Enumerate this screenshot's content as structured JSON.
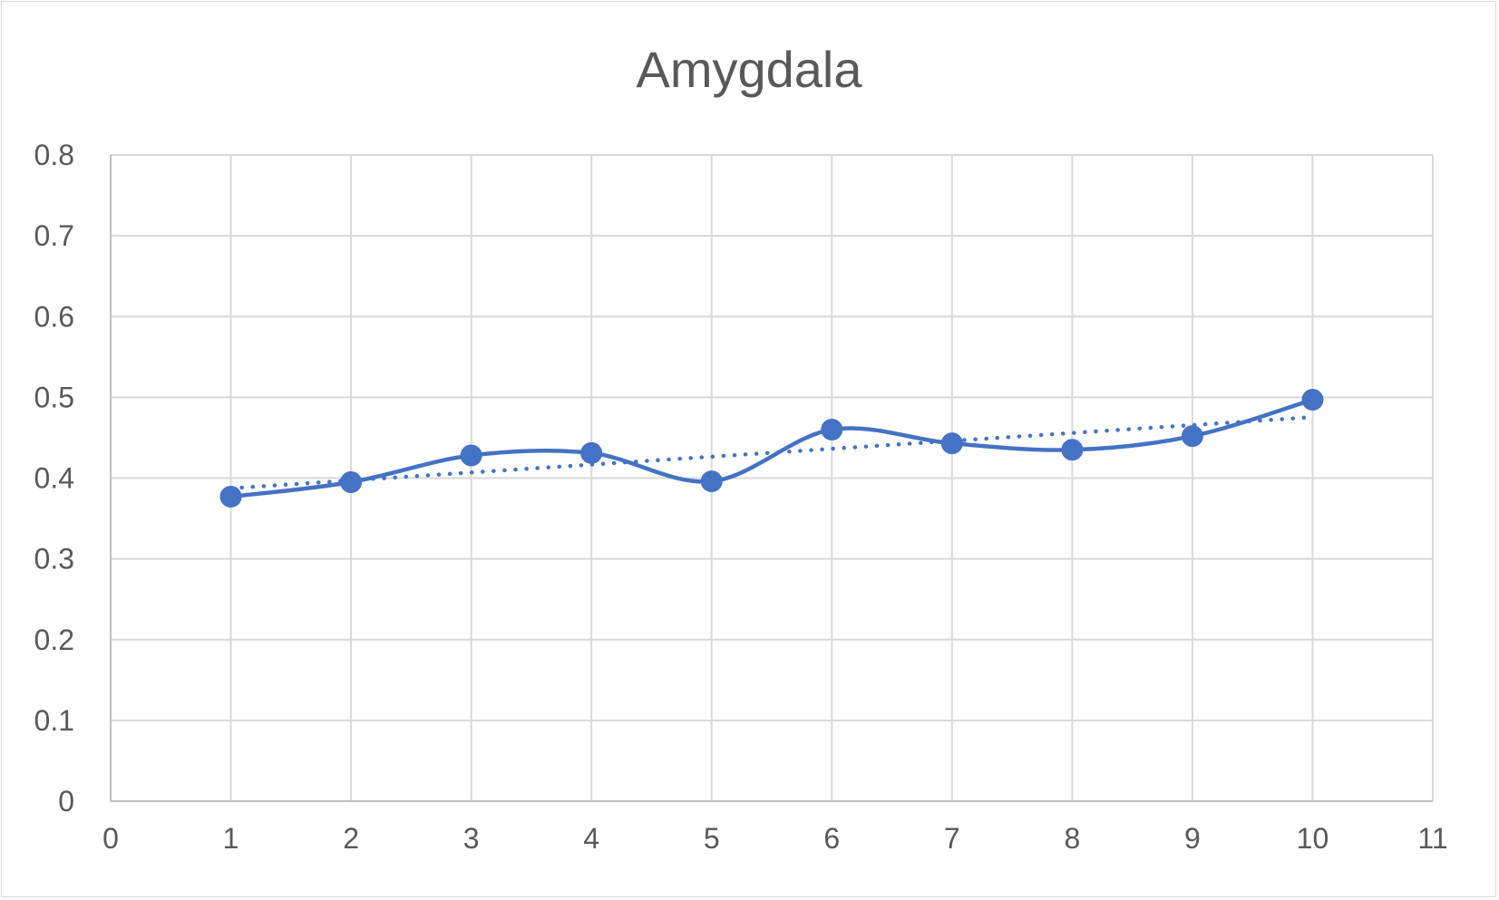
{
  "chart_data": {
    "type": "scatter",
    "title": "Amygdala",
    "xlabel": "",
    "ylabel": "",
    "xlim": [
      0,
      11
    ],
    "ylim": [
      0,
      0.8
    ],
    "x_ticks": [
      "0",
      "1",
      "2",
      "3",
      "4",
      "5",
      "6",
      "7",
      "8",
      "9",
      "10",
      "11"
    ],
    "y_ticks": [
      "0",
      "0.1",
      "0.2",
      "0.3",
      "0.4",
      "0.5",
      "0.6",
      "0.7",
      "0.8"
    ],
    "grid": true,
    "legend": "none",
    "series": [
      {
        "x": [
          1,
          2,
          3,
          4,
          5,
          6,
          7,
          8,
          9,
          10
        ],
        "y": [
          0.377,
          0.395,
          0.428,
          0.431,
          0.396,
          0.46,
          0.443,
          0.435,
          0.452,
          0.497
        ],
        "style": "smooth-line-with-markers",
        "color": "#4472c4"
      }
    ],
    "trendline": {
      "type": "linear",
      "style": "dotted",
      "color": "#4472c4",
      "x_range": [
        1,
        10
      ]
    }
  }
}
